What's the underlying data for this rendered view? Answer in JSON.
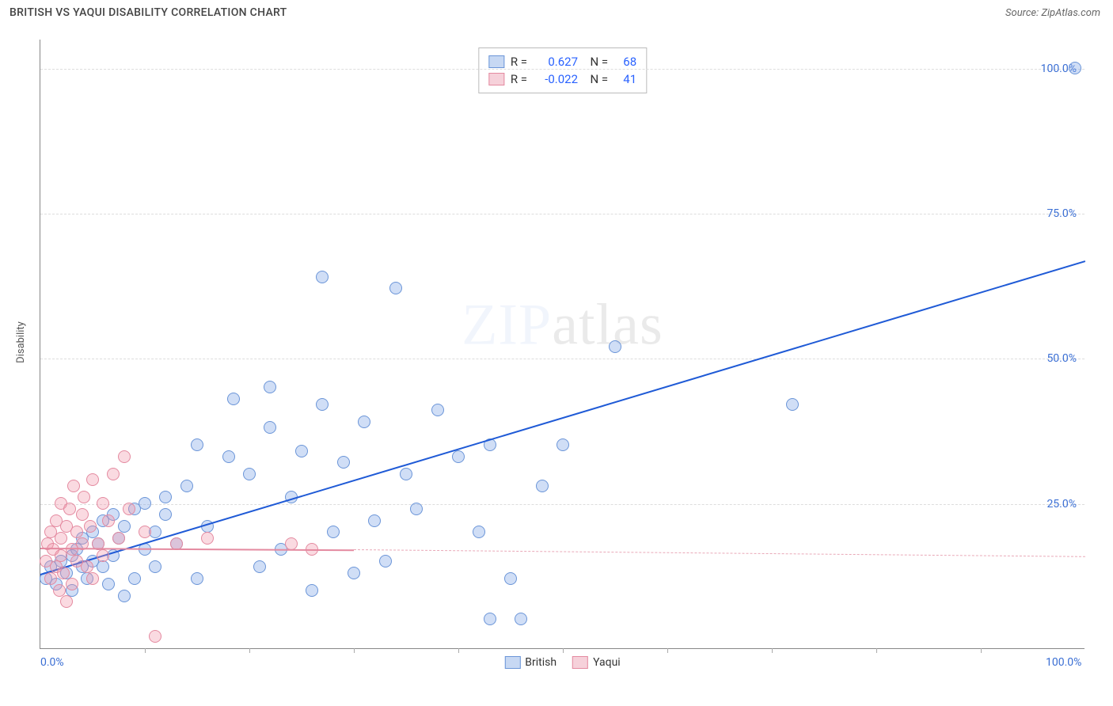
{
  "header": {
    "title": "BRITISH VS YAQUI DISABILITY CORRELATION CHART",
    "source_prefix": "Source: ",
    "source": "ZipAtlas.com"
  },
  "watermark": {
    "zip": "ZIP",
    "rest": "atlas"
  },
  "chart": {
    "type": "scatter",
    "ylabel": "Disability",
    "background_color": "#ffffff",
    "grid_color": "#dddddd",
    "axis_color": "#888888",
    "tick_label_color": "#3b6fd4",
    "xlim": [
      0,
      100
    ],
    "ylim": [
      0,
      105
    ],
    "x_ticks_minor": [
      10,
      20,
      30,
      40,
      50,
      60,
      70,
      80,
      90
    ],
    "x_tick_labels": [
      {
        "pos": 0,
        "label": "0.0%"
      },
      {
        "pos": 100,
        "label": "100.0%"
      }
    ],
    "y_gridlines": [
      25,
      50,
      75,
      100
    ],
    "y_tick_labels": [
      {
        "pos": 25,
        "label": "25.0%"
      },
      {
        "pos": 50,
        "label": "50.0%"
      },
      {
        "pos": 75,
        "label": "75.0%"
      },
      {
        "pos": 100,
        "label": "100.0%"
      }
    ],
    "marker_radius": 8,
    "marker_stroke_width": 1.2,
    "series": [
      {
        "name": "British",
        "fill_color": "rgba(120,160,230,0.35)",
        "stroke_color": "#6b95d8",
        "swatch_fill": "#c7d8f3",
        "swatch_stroke": "#6b95d8",
        "r": 0.627,
        "n": 68,
        "regression": {
          "x1": 0,
          "y1": 13,
          "x2": 100,
          "y2": 67,
          "color": "#1f5ad6",
          "width": 2,
          "style": "solid"
        },
        "points": [
          [
            0.5,
            12
          ],
          [
            1,
            14
          ],
          [
            1.5,
            11
          ],
          [
            2,
            15
          ],
          [
            2.5,
            13
          ],
          [
            3,
            16
          ],
          [
            3,
            10
          ],
          [
            3.5,
            17
          ],
          [
            4,
            14
          ],
          [
            4,
            19
          ],
          [
            4.5,
            12
          ],
          [
            5,
            20
          ],
          [
            5,
            15
          ],
          [
            5.5,
            18
          ],
          [
            6,
            22
          ],
          [
            6,
            14
          ],
          [
            6.5,
            11
          ],
          [
            7,
            16
          ],
          [
            7,
            23
          ],
          [
            7.5,
            19
          ],
          [
            8,
            9
          ],
          [
            8,
            21
          ],
          [
            9,
            24
          ],
          [
            9,
            12
          ],
          [
            10,
            17
          ],
          [
            10,
            25
          ],
          [
            11,
            20
          ],
          [
            11,
            14
          ],
          [
            12,
            26
          ],
          [
            12,
            23
          ],
          [
            13,
            18
          ],
          [
            14,
            28
          ],
          [
            15,
            12
          ],
          [
            15,
            35
          ],
          [
            16,
            21
          ],
          [
            18,
            33
          ],
          [
            18.5,
            43
          ],
          [
            20,
            30
          ],
          [
            21,
            14
          ],
          [
            22,
            45
          ],
          [
            22,
            38
          ],
          [
            23,
            17
          ],
          [
            24,
            26
          ],
          [
            25,
            34
          ],
          [
            26,
            10
          ],
          [
            27,
            42
          ],
          [
            27,
            64
          ],
          [
            28,
            20
          ],
          [
            29,
            32
          ],
          [
            30,
            13
          ],
          [
            31,
            39
          ],
          [
            32,
            22
          ],
          [
            33,
            15
          ],
          [
            34,
            62
          ],
          [
            35,
            30
          ],
          [
            36,
            24
          ],
          [
            38,
            41
          ],
          [
            40,
            33
          ],
          [
            42,
            20
          ],
          [
            43,
            5
          ],
          [
            43,
            35
          ],
          [
            45,
            12
          ],
          [
            46,
            5
          ],
          [
            48,
            28
          ],
          [
            50,
            35
          ],
          [
            55,
            52
          ],
          [
            72,
            42
          ],
          [
            99,
            100
          ]
        ]
      },
      {
        "name": "Yaqui",
        "fill_color": "rgba(240,150,170,0.35)",
        "stroke_color": "#e48aa0",
        "swatch_fill": "#f6d1da",
        "swatch_stroke": "#e48aa0",
        "r": -0.022,
        "n": 41,
        "regression": {
          "x1": 0,
          "y1": 17.5,
          "x2": 30,
          "y2": 17.2,
          "color": "#e48aa0",
          "width": 2,
          "style": "solid",
          "extend_dash": {
            "x2": 100,
            "y2": 16,
            "color": "#e9a8b7"
          }
        },
        "points": [
          [
            0.5,
            15
          ],
          [
            0.7,
            18
          ],
          [
            1,
            12
          ],
          [
            1,
            20
          ],
          [
            1.2,
            17
          ],
          [
            1.5,
            14
          ],
          [
            1.5,
            22
          ],
          [
            1.8,
            10
          ],
          [
            2,
            19
          ],
          [
            2,
            16
          ],
          [
            2,
            25
          ],
          [
            2.2,
            13
          ],
          [
            2.5,
            21
          ],
          [
            2.5,
            8
          ],
          [
            2.8,
            24
          ],
          [
            3,
            17
          ],
          [
            3,
            11
          ],
          [
            3.2,
            28
          ],
          [
            3.5,
            20
          ],
          [
            3.5,
            15
          ],
          [
            4,
            23
          ],
          [
            4,
            18
          ],
          [
            4.2,
            26
          ],
          [
            4.5,
            14
          ],
          [
            4.8,
            21
          ],
          [
            5,
            29
          ],
          [
            5,
            12
          ],
          [
            5.5,
            18
          ],
          [
            6,
            25
          ],
          [
            6,
            16
          ],
          [
            6.5,
            22
          ],
          [
            7,
            30
          ],
          [
            7.5,
            19
          ],
          [
            8,
            33
          ],
          [
            8.5,
            24
          ],
          [
            10,
            20
          ],
          [
            11,
            2
          ],
          [
            13,
            18
          ],
          [
            16,
            19
          ],
          [
            24,
            18
          ],
          [
            26,
            17
          ]
        ]
      }
    ],
    "corr_legend_labels": {
      "r": "R =",
      "n": "N ="
    },
    "series_legend_label_color": "#333333"
  }
}
